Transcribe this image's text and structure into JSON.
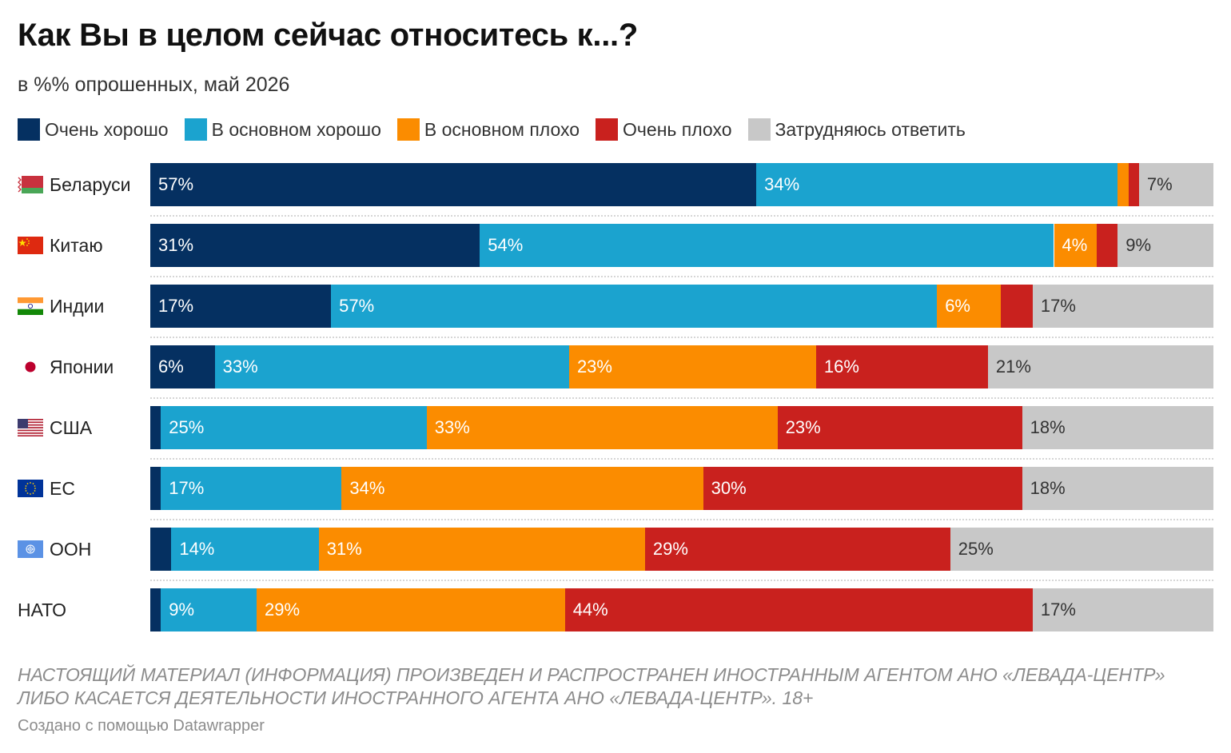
{
  "title": "Как Вы в целом сейчас относитесь к...?",
  "subtitle": "в %% опрошенных, май 2026",
  "note": "НАСТОЯЩИЙ МАТЕРИАЛ (ИНФОРМАЦИЯ) ПРОИЗВЕДЕН И РАСПРОСТРАНЕН ИНОСТРАННЫМ АГЕНТОМ АНО «ЛЕВАДА-ЦЕНТР» ЛИБО КАСАЕТСЯ ДЕЯТЕЛЬНОСТИ ИНОСТРАННОГО АГЕНТА АНО «ЛЕВАДА-ЦЕНТР». 18+",
  "credit": "Создано с помощью Datawrapper",
  "chart_data": {
    "type": "bar",
    "orientation": "horizontal",
    "stacked": true,
    "unit": "%",
    "categories": [
      "Беларуси",
      "Китаю",
      "Индии",
      "Японии",
      "США",
      "ЕС",
      "ООН",
      "НАТО"
    ],
    "flags": [
      "belarus-flag-icon",
      "china-flag-icon",
      "india-flag-icon",
      "japan-flag-icon",
      "usa-flag-icon",
      "eu-flag-icon",
      "un-flag-icon",
      ""
    ],
    "series": [
      {
        "name": "Очень хорошо",
        "color": "#053061",
        "text_color": "#ffffff",
        "values": [
          57,
          31,
          17,
          6,
          1,
          1,
          2,
          1
        ]
      },
      {
        "name": "В основном хорошо",
        "color": "#1ba3cf",
        "text_color": "#ffffff",
        "values": [
          34,
          54,
          57,
          33,
          25,
          17,
          14,
          9
        ]
      },
      {
        "name": "В основном плохо",
        "color": "#fb8c00",
        "text_color": "#ffffff",
        "values": [
          1,
          4,
          6,
          23,
          33,
          34,
          31,
          29
        ]
      },
      {
        "name": "Очень плохо",
        "color": "#c9211e",
        "text_color": "#ffffff",
        "values": [
          1,
          2,
          3,
          16,
          23,
          30,
          29,
          44
        ]
      },
      {
        "name": "Затрудняюсь ответить",
        "color": "#c8c8c8",
        "text_color": "#333333",
        "values": [
          7,
          9,
          17,
          21,
          18,
          18,
          25,
          17
        ]
      }
    ],
    "data_labels": [
      [
        "57%",
        "34%",
        "",
        "",
        "7%"
      ],
      [
        "31%",
        "54%",
        "4%",
        "",
        "9%"
      ],
      [
        "17%",
        "57%",
        "6%",
        "",
        "17%"
      ],
      [
        "6%",
        "33%",
        "23%",
        "16%",
        "21%"
      ],
      [
        "",
        "25%",
        "33%",
        "23%",
        "18%"
      ],
      [
        "",
        "17%",
        "34%",
        "30%",
        "18%"
      ],
      [
        "",
        "14%",
        "31%",
        "29%",
        "25%"
      ],
      [
        "",
        "9%",
        "29%",
        "44%",
        "17%"
      ]
    ],
    "xlim": [
      0,
      100
    ],
    "legend_position": "top"
  }
}
